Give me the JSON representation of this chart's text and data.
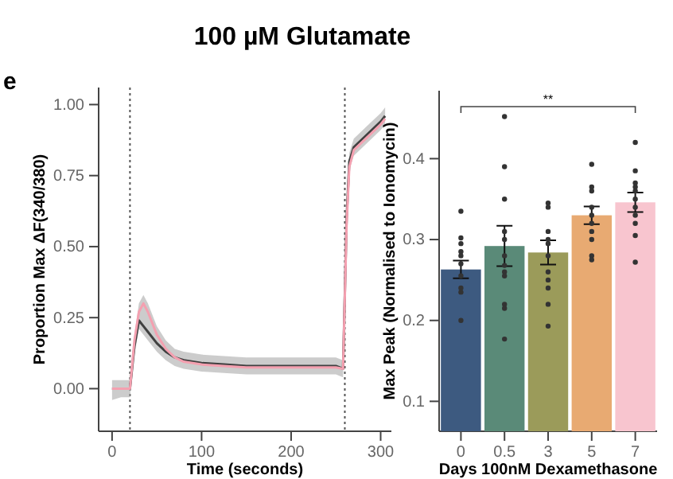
{
  "chart_data": [
    {
      "type": "line",
      "title": "100 µM Glutamate",
      "annotations": [
        "e"
      ],
      "xlabel": "Time (seconds)",
      "ylabel": "Proportion Max ΔF(340/380)",
      "xlim": [
        -15,
        312
      ],
      "xticks": [
        {
          "value": 0,
          "label": "0"
        },
        {
          "value": 100,
          "label": "100"
        },
        {
          "value": 200,
          "label": "200"
        },
        {
          "value": 300,
          "label": "300"
        }
      ],
      "ylim": [
        -0.15,
        1.06
      ],
      "yticks": [
        {
          "value": 0,
          "label": "0.00"
        },
        {
          "value": 0.25,
          "label": "0.25"
        },
        {
          "value": 0.5,
          "label": "0.50"
        },
        {
          "value": 0.75,
          "label": "0.75"
        },
        {
          "value": 1,
          "label": "1.00"
        }
      ],
      "marker": "none",
      "line_style": "solid",
      "ref_lines": [
        {
          "axis": "x",
          "value": 20,
          "line_style": "dotted",
          "color": "#555555"
        },
        {
          "axis": "x",
          "value": 260,
          "line_style": "dotted",
          "color": "#555555"
        }
      ],
      "x": [
        0,
        10,
        20,
        25,
        30,
        35,
        40,
        50,
        60,
        70,
        80,
        100,
        125,
        150,
        175,
        200,
        225,
        250,
        258,
        262,
        265,
        270,
        280,
        290,
        300,
        305
      ],
      "series": [
        {
          "color": "#404040",
          "values": [
            0,
            0,
            0,
            0.15,
            0.24,
            0.22,
            0.2,
            0.16,
            0.13,
            0.11,
            0.1,
            0.09,
            0.085,
            0.08,
            0.08,
            0.08,
            0.08,
            0.08,
            0.07,
            0.6,
            0.8,
            0.85,
            0.88,
            0.91,
            0.94,
            0.96
          ],
          "lower": [
            -0.04,
            -0.03,
            -0.03,
            0.12,
            0.21,
            0.19,
            0.17,
            0.13,
            0.1,
            0.08,
            0.07,
            0.06,
            0.055,
            0.05,
            0.05,
            0.05,
            0.05,
            0.05,
            0.04,
            0.57,
            0.77,
            0.82,
            0.85,
            0.88,
            0.91,
            0.93
          ],
          "upper": [
            0.03,
            0.03,
            0.03,
            0.19,
            0.3,
            0.33,
            0.3,
            0.22,
            0.17,
            0.14,
            0.13,
            0.12,
            0.115,
            0.11,
            0.11,
            0.11,
            0.11,
            0.11,
            0.1,
            0.63,
            0.83,
            0.88,
            0.91,
            0.94,
            0.97,
            0.99
          ]
        },
        {
          "color": "#f4a0b0",
          "values": [
            0,
            0,
            0,
            0.17,
            0.27,
            0.3,
            0.27,
            0.19,
            0.14,
            0.11,
            0.095,
            0.085,
            0.08,
            0.075,
            0.075,
            0.075,
            0.075,
            0.075,
            0.07,
            0.58,
            0.78,
            0.84,
            0.87,
            0.9,
            0.93,
            0.95
          ]
        }
      ]
    },
    {
      "type": "bar",
      "xlabel": "Days 100nM Dexamethasone",
      "ylabel": "Max Peak (Normalised to Ionomycin)",
      "annotations": [
        "**"
      ],
      "categories": [
        "0",
        "0.5",
        "3",
        "5",
        "7"
      ],
      "ylim": [
        0.063,
        0.484
      ],
      "yticks": [
        0.1,
        0.2,
        0.3,
        0.4
      ],
      "series": [
        {
          "type": "bar",
          "colors": [
            "#3d5a80",
            "#5a8a78",
            "#9b9b5a",
            "#e8aa72",
            "#f8c5cf"
          ],
          "values": [
            0.263,
            0.292,
            0.284,
            0.33,
            0.346
          ],
          "errors": [
            0.011,
            0.025,
            0.015,
            0.011,
            0.012
          ]
        },
        {
          "type": "scatter",
          "color": "#333333",
          "marker": "circle",
          "x": [
            "0",
            "0",
            "0",
            "0",
            "0",
            "0",
            "0",
            "0",
            "0",
            "0",
            "0.5",
            "0.5",
            "0.5",
            "0.5",
            "0.5",
            "0.5",
            "0.5",
            "0.5",
            "0.5",
            "0.5",
            "0.5",
            "0.5",
            "3",
            "3",
            "3",
            "3",
            "3",
            "3",
            "3",
            "3",
            "3",
            "3",
            "3",
            "5",
            "5",
            "5",
            "5",
            "5",
            "5",
            "5",
            "5",
            "5",
            "5",
            "7",
            "7",
            "7",
            "7",
            "7",
            "7",
            "7",
            "7",
            "7",
            "7",
            "7"
          ],
          "values": [
            0.335,
            0.302,
            0.295,
            0.285,
            0.28,
            0.27,
            0.255,
            0.24,
            0.235,
            0.2,
            0.452,
            0.39,
            0.35,
            0.31,
            0.3,
            0.28,
            0.268,
            0.26,
            0.255,
            0.22,
            0.215,
            0.177,
            0.345,
            0.34,
            0.31,
            0.3,
            0.295,
            0.28,
            0.26,
            0.25,
            0.24,
            0.22,
            0.193,
            0.393,
            0.365,
            0.36,
            0.34,
            0.33,
            0.32,
            0.31,
            0.3,
            0.28,
            0.275,
            0.42,
            0.385,
            0.37,
            0.365,
            0.36,
            0.35,
            0.34,
            0.33,
            0.32,
            0.305,
            0.272
          ]
        }
      ]
    }
  ]
}
